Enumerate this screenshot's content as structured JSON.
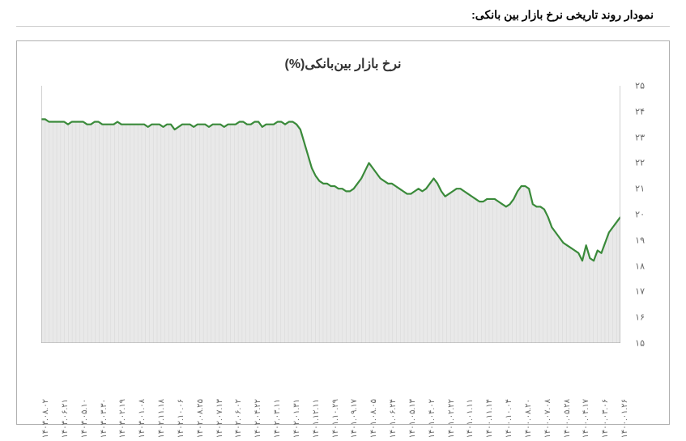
{
  "page_title": "نمودار روند تاریخی نرخ بازار بین بانکی:",
  "chart": {
    "type": "line-area",
    "title": "نرخ بازار بین‌بانکی(%)",
    "title_fontsize": 16,
    "ylim": [
      15,
      25
    ],
    "ytick_step": 1,
    "yticks": [
      "۱۵",
      "۱۶",
      "۱۷",
      "۱۸",
      "۱۹",
      "۲۰",
      "۲۱",
      "۲۲",
      "۲۳",
      "۲۴",
      "۲۵"
    ],
    "ytick_fontsize": 11,
    "yaxis_side": "right",
    "x_labels": [
      "۱۴۰۰.۰۱.۲۶",
      "۱۴۰۰.۰۳.۰۶",
      "۱۴۰۰.۰۴.۱۷",
      "۱۴۰۰.۰۵.۲۸",
      "۱۴۰۰.۰۷.۰۸",
      "۱۴۰۰.۰۸.۲۰",
      "۱۴۰۰.۱۰.۰۴",
      "۱۴۰۰.۱۱.۱۴",
      "۱۴۰۱.۰۱.۱۱",
      "۱۴۰۱.۰۲.۲۲",
      "۱۴۰۱.۰۴.۰۲",
      "۱۴۰۱.۰۵.۱۳",
      "۱۴۰۱.۰۶.۲۴",
      "۱۴۰۱.۰۸.۰۵",
      "۱۴۰۱.۰۹.۱۷",
      "۱۴۰۱.۱۰.۲۹",
      "۱۴۰۱.۱۲.۱۱",
      "۱۴۰۲.۰۱.۳۱",
      "۱۴۰۲.۰۳.۱۱",
      "۱۴۰۲.۰۴.۲۲",
      "۱۴۰۲.۰۶.۰۲",
      "۱۴۰۲.۰۷.۱۳",
      "۱۴۰۲.۰۸.۲۵",
      "۱۴۰۲.۱۰.۰۶",
      "۱۴۰۲.۱۱.۱۸",
      "۱۴۰۳.۰۱.۰۸",
      "۱۴۰۳.۰۲.۱۹",
      "۱۴۰۳.۰۳.۳۰",
      "۱۴۰۳.۰۵.۱۰",
      "۱۴۰۳.۰۶.۲۱",
      "۱۴۰۳.۰۸.۰۲"
    ],
    "xtick_fontsize": 10,
    "xtick_rotation": -90,
    "series": {
      "values": [
        19.9,
        19.7,
        19.5,
        19.3,
        18.9,
        18.5,
        18.6,
        18.2,
        18.3,
        18.8,
        18.2,
        18.5,
        18.6,
        18.7,
        18.8,
        18.9,
        19.1,
        19.3,
        19.5,
        19.9,
        20.2,
        20.3,
        20.3,
        20.4,
        21.0,
        21.1,
        21.1,
        20.9,
        20.6,
        20.4,
        20.3,
        20.4,
        20.5,
        20.6,
        20.6,
        20.6,
        20.5,
        20.5,
        20.6,
        20.7,
        20.8,
        20.9,
        21.0,
        21.0,
        20.9,
        20.8,
        20.7,
        20.9,
        21.2,
        21.4,
        21.2,
        21.0,
        20.9,
        21.0,
        20.9,
        20.8,
        20.8,
        20.9,
        21.0,
        21.1,
        21.2,
        21.2,
        21.3,
        21.4,
        21.6,
        21.8,
        22.0,
        21.7,
        21.4,
        21.2,
        21.0,
        20.9,
        20.9,
        21.0,
        21.0,
        21.1,
        21.1,
        21.2,
        21.2,
        21.3,
        21.5,
        21.8,
        22.3,
        22.8,
        23.3,
        23.5,
        23.6,
        23.6,
        23.5,
        23.6,
        23.6,
        23.5,
        23.5,
        23.5,
        23.4,
        23.6,
        23.6,
        23.5,
        23.5,
        23.6,
        23.6,
        23.5,
        23.5,
        23.5,
        23.4,
        23.5,
        23.5,
        23.5,
        23.4,
        23.5,
        23.5,
        23.5,
        23.4,
        23.5,
        23.5,
        23.5,
        23.4,
        23.3,
        23.5,
        23.5,
        23.4,
        23.5,
        23.5,
        23.5,
        23.4,
        23.5,
        23.5,
        23.5,
        23.5,
        23.5,
        23.5,
        23.5,
        23.6,
        23.5,
        23.5,
        23.5,
        23.5,
        23.6,
        23.6,
        23.5,
        23.5,
        23.6,
        23.6,
        23.6,
        23.6,
        23.5,
        23.6,
        23.6,
        23.6,
        23.6,
        23.6,
        23.7,
        23.7
      ],
      "line_color": "#3a8a3a",
      "line_width": 2.2,
      "fill_color": "#e9e9e9",
      "fill_opacity": 1.0
    },
    "grid": {
      "show_vertical": true,
      "vertical_color": "#d9d9d9",
      "vertical_spacing_count": 150,
      "show_horizontal": false
    },
    "background_color": "#ffffff",
    "axis_color": "#a0a0a0",
    "xaxis_reversed_for_rtl": true
  }
}
